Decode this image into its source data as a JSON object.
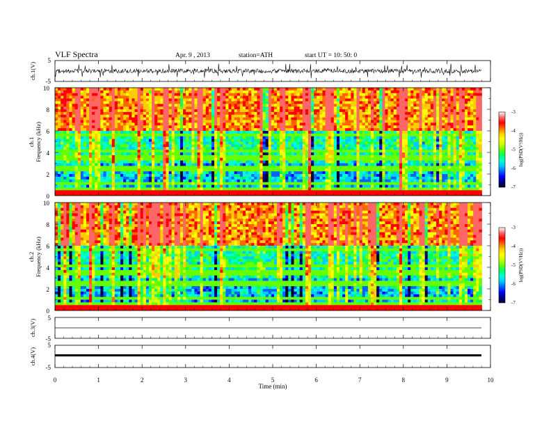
{
  "header": {
    "title": "VLF  Spectra",
    "date": "Apr. 9  , 2013",
    "station": "station=ATH",
    "start": "start  UT  =    10: 50: 0"
  },
  "colors": {
    "spectrum": [
      "#000033",
      "#000080",
      "#0000ff",
      "#0066ff",
      "#00ccff",
      "#00ffcc",
      "#00ff66",
      "#66ff00",
      "#ccff00",
      "#ffff00",
      "#ffcc00",
      "#ff6600",
      "#ff0000",
      "#ff6666",
      "#ffffff"
    ]
  },
  "chart_data": [
    {
      "type": "line",
      "name": "ch.1 waveform",
      "ylabel": "ch.1(V)",
      "ylim": [
        -5,
        5
      ],
      "yticks": [
        "5",
        "-5"
      ],
      "xlim": [
        0,
        10
      ]
    },
    {
      "type": "heatmap",
      "name": "ch.1 spectrogram",
      "ylabel_top": "ch.1",
      "ylabel": "Frequency  (kHz)",
      "ylim": [
        0,
        10
      ],
      "yticks": [
        "0",
        "2",
        "4",
        "6",
        "8",
        "10"
      ],
      "xlim": [
        0,
        10
      ],
      "data_end_min": 9.8,
      "colorbar": {
        "label": "log(PSD(V²/Hz))",
        "range": [
          -7,
          -3
        ],
        "ticks": [
          "-3",
          "-4",
          "-5",
          "-6",
          "-7"
        ]
      },
      "strong_lines_khz": [
        0.3,
        0.6,
        1.2,
        2.3,
        2.7,
        3.5,
        4.2,
        5.7,
        6.5
      ],
      "spheric_times_min": [
        0.2,
        0.5,
        0.8,
        1.3,
        1.9,
        2.2,
        2.5,
        3.3,
        3.8,
        4.7,
        5.2,
        5.8,
        6.3,
        6.9,
        7.3,
        7.9,
        8.4,
        8.8,
        9.3,
        9.7
      ]
    },
    {
      "type": "heatmap",
      "name": "ch.2 spectrogram",
      "ylabel_top": "ch.2",
      "ylabel": "Frequency  (kHz)",
      "ylim": [
        0,
        10
      ],
      "yticks": [
        "0",
        "2",
        "4",
        "6",
        "8",
        "10"
      ],
      "xlim": [
        0,
        10
      ],
      "data_end_min": 9.8,
      "colorbar": {
        "label": "log(PSD(V²/Hz))",
        "range": [
          -7,
          -3
        ],
        "ticks": [
          "-3",
          "-4",
          "-5",
          "-6",
          "-7"
        ]
      },
      "strong_lines_khz": [
        0.3,
        0.6,
        1.2,
        2.3,
        2.7,
        3.5,
        4.2,
        5.7,
        6.5
      ],
      "spheric_times_min": [
        0.2,
        0.5,
        0.8,
        1.3,
        1.9,
        2.2,
        2.5,
        3.3,
        3.8,
        4.7,
        5.2,
        5.8,
        6.3,
        6.9,
        7.3,
        7.9,
        8.4,
        8.8,
        9.3,
        9.7
      ]
    },
    {
      "type": "line",
      "name": "ch.3 waveform",
      "ylabel": "ch.3(V)",
      "ylim": [
        -5,
        5
      ],
      "yticks": [
        "5",
        "-5"
      ],
      "xlim": [
        0,
        10
      ]
    },
    {
      "type": "line",
      "name": "ch.4 waveform",
      "ylabel": "ch.4(V)",
      "ylim": [
        -5,
        5
      ],
      "yticks": [
        "5",
        "-5"
      ],
      "xlim": [
        0,
        10
      ],
      "xlabel": "Time  (min)",
      "xticks": [
        "0",
        "1",
        "2",
        "3",
        "4",
        "5",
        "6",
        "7",
        "8",
        "9",
        "10"
      ]
    }
  ]
}
